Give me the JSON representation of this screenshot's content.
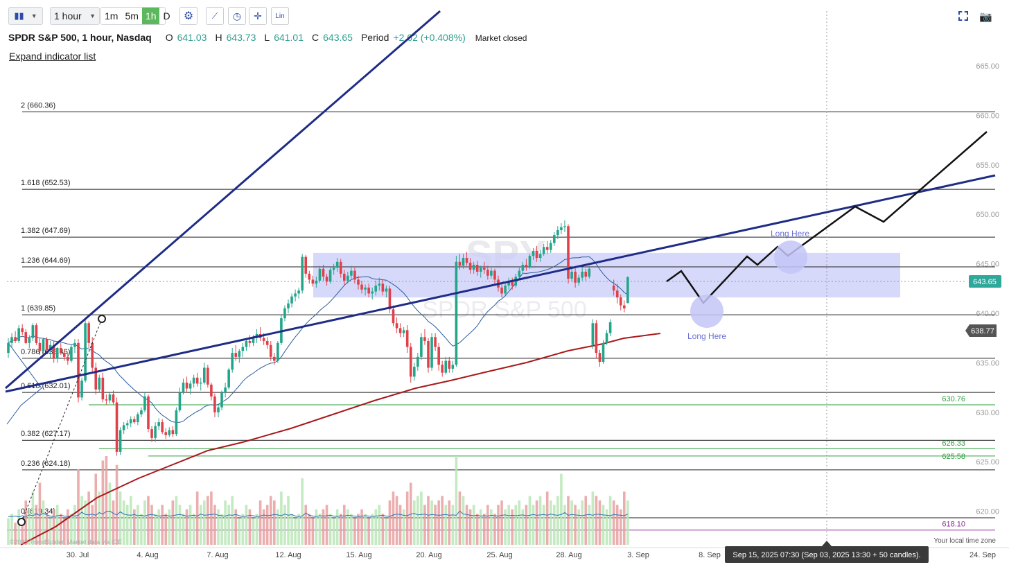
{
  "toolbar": {
    "interval_select": "1 hour",
    "intervals": [
      "1m",
      "5m",
      "1h",
      "D"
    ],
    "active_interval": "1h",
    "scale_label": "Lin"
  },
  "header": {
    "symbol": "SPDR S&P 500, 1 hour, Nasdaq",
    "open_label": "O",
    "open": "641.03",
    "high_label": "H",
    "high": "643.73",
    "low_label": "L",
    "low": "641.01",
    "close_label": "C",
    "close": "643.65",
    "period_label": "Period",
    "period": "+2.62 (+0.408%)",
    "status": "Market closed"
  },
  "expand_label": "Expand indicator list",
  "watermark": {
    "ticker": "SPY",
    "name": "SPDR S&P 500"
  },
  "footer": {
    "copyright": "©2025 TrendSpider. Market data via ICE",
    "local_time": "Your local time zone"
  },
  "tooltip": "Sep 15, 2025 07:30 (Sep 03, 2025 13:30 + 50 candles).",
  "chart_data": {
    "type": "candlestick",
    "interval": "1 hour",
    "y_axis": {
      "ticks": [
        "665.00",
        "660.00",
        "655.00",
        "650.00",
        "645.00",
        "640.00",
        "635.00",
        "630.00",
        "625.00",
        "620.00"
      ],
      "range": [
        617.5,
        667.5
      ]
    },
    "x_axis": {
      "ticks": [
        "30. Jul",
        "4. Aug",
        "7. Aug",
        "12. Aug",
        "15. Aug",
        "20. Aug",
        "25. Aug",
        "28. Aug",
        "3. Sep",
        "8. Sep",
        "24. Sep"
      ]
    },
    "last_price": "643.65",
    "price_tags": [
      {
        "label": "643.65",
        "color": "#2ea89a"
      },
      {
        "label": "638.77",
        "color": "#555555"
      }
    ],
    "fibonacci": [
      {
        "label": "2 (660.36)",
        "value": 660.36
      },
      {
        "label": "1.618 (652.53)",
        "value": 652.53
      },
      {
        "label": "1.382 (647.69)",
        "value": 647.69
      },
      {
        "label": "1.236 (644.69)",
        "value": 644.69
      },
      {
        "label": "1 (639.85)",
        "value": 639.85
      },
      {
        "label": "0.786 (635.46)",
        "value": 635.46
      },
      {
        "label": "0.618 (632.01)",
        "value": 632.01
      },
      {
        "label": "0.382 (627.17)",
        "value": 627.17
      },
      {
        "label": "0.236 (624.18)",
        "value": 624.18
      },
      {
        "label": "0 (619.34)",
        "value": 619.34
      }
    ],
    "horizontal_levels": [
      {
        "label": "630.76",
        "value": 630.76,
        "color": "#2e9e3e"
      },
      {
        "label": "626.33",
        "value": 626.33,
        "color": "#2e9e3e"
      },
      {
        "label": "625.58",
        "value": 625.58,
        "color": "#2e9e3e"
      },
      {
        "label": "618.10",
        "value": 618.1,
        "color": "#8a2a9a"
      }
    ],
    "zone": {
      "from": 641.6,
      "to": 646.1,
      "color": "#c9ccf8"
    },
    "annotations": [
      "Long Here",
      "Long Here"
    ],
    "candles": [
      [
        636.0,
        637.5,
        635.5,
        637.0
      ],
      [
        637.0,
        638.0,
        636.5,
        637.6
      ],
      [
        637.6,
        638.2,
        637.0,
        637.2
      ],
      [
        637.2,
        638.8,
        637.0,
        638.5
      ],
      [
        638.5,
        638.9,
        637.8,
        638.1
      ],
      [
        638.1,
        638.4,
        636.9,
        637.0
      ],
      [
        637.0,
        637.8,
        636.5,
        637.5
      ],
      [
        637.5,
        639.0,
        637.2,
        638.8
      ],
      [
        638.8,
        639.0,
        636.8,
        637.0
      ],
      [
        637.0,
        637.5,
        635.8,
        636.2
      ],
      [
        636.2,
        637.5,
        636.0,
        637.4
      ],
      [
        637.4,
        637.6,
        636.0,
        636.3
      ],
      [
        636.3,
        637.2,
        635.5,
        636.8
      ],
      [
        636.8,
        637.2,
        635.0,
        635.4
      ],
      [
        635.4,
        636.6,
        635.0,
        636.5
      ],
      [
        636.5,
        637.0,
        635.8,
        636.0
      ],
      [
        636.0,
        636.4,
        635.2,
        635.6
      ],
      [
        635.6,
        636.0,
        634.8,
        635.2
      ],
      [
        635.2,
        636.8,
        635.0,
        636.6
      ],
      [
        636.6,
        637.4,
        636.0,
        637.0
      ],
      [
        637.0,
        637.4,
        631.0,
        631.5
      ],
      [
        631.5,
        633.5,
        631.2,
        633.2
      ],
      [
        633.2,
        639.5,
        633.0,
        639.0
      ],
      [
        639.0,
        639.2,
        636.5,
        637.0
      ],
      [
        637.0,
        637.6,
        634.0,
        634.5
      ],
      [
        634.5,
        635.0,
        631.8,
        632.3
      ],
      [
        632.3,
        633.8,
        632.0,
        633.5
      ],
      [
        633.5,
        634.0,
        631.0,
        631.3
      ],
      [
        631.3,
        631.8,
        630.8,
        631.2
      ],
      [
        631.2,
        632.0,
        630.9,
        631.8
      ],
      [
        631.8,
        632.2,
        630.8,
        631.0
      ],
      [
        631.0,
        631.5,
        625.6,
        626.0
      ],
      [
        626.0,
        628.5,
        625.7,
        628.2
      ],
      [
        628.2,
        629.0,
        627.8,
        628.7
      ],
      [
        628.7,
        629.2,
        628.3,
        628.9
      ],
      [
        628.9,
        629.6,
        628.5,
        629.3
      ],
      [
        629.3,
        629.6,
        628.8,
        629.0
      ],
      [
        629.0,
        630.0,
        628.7,
        629.8
      ],
      [
        629.8,
        630.5,
        629.5,
        630.2
      ],
      [
        630.2,
        632.0,
        630.0,
        631.6
      ],
      [
        631.6,
        631.8,
        628.0,
        628.3
      ],
      [
        628.3,
        628.6,
        627.0,
        627.4
      ],
      [
        627.4,
        629.0,
        627.0,
        628.6
      ],
      [
        628.6,
        629.4,
        628.2,
        629.0
      ],
      [
        629.0,
        629.3,
        627.8,
        628.0
      ],
      [
        628.0,
        628.4,
        627.3,
        627.7
      ],
      [
        627.7,
        628.5,
        627.5,
        628.2
      ],
      [
        628.2,
        628.6,
        627.5,
        627.8
      ],
      [
        627.8,
        630.5,
        627.6,
        630.2
      ],
      [
        630.2,
        632.5,
        630.0,
        632.0
      ],
      [
        632.0,
        633.4,
        631.8,
        633.0
      ],
      [
        633.0,
        633.6,
        632.0,
        632.4
      ],
      [
        632.4,
        633.2,
        631.8,
        632.9
      ],
      [
        632.9,
        633.8,
        632.5,
        633.5
      ],
      [
        633.5,
        634.0,
        632.6,
        632.9
      ],
      [
        632.9,
        633.5,
        632.2,
        633.0
      ],
      [
        633.0,
        635.0,
        632.8,
        634.5
      ],
      [
        634.5,
        634.8,
        632.5,
        632.8
      ],
      [
        632.8,
        633.0,
        631.2,
        631.6
      ],
      [
        631.6,
        631.9,
        629.5,
        630.0
      ],
      [
        630.0,
        630.8,
        629.5,
        630.5
      ],
      [
        630.5,
        632.2,
        630.2,
        632.0
      ],
      [
        632.0,
        633.0,
        631.5,
        632.5
      ],
      [
        632.5,
        634.5,
        632.3,
        634.3
      ],
      [
        634.3,
        636.5,
        634.0,
        636.0
      ],
      [
        636.0,
        636.8,
        635.2,
        635.6
      ],
      [
        635.6,
        636.4,
        635.0,
        636.2
      ],
      [
        636.2,
        637.0,
        635.6,
        636.6
      ],
      [
        636.6,
        637.5,
        636.2,
        637.2
      ],
      [
        637.2,
        637.8,
        636.6,
        637.0
      ],
      [
        637.0,
        637.8,
        636.7,
        637.5
      ],
      [
        637.5,
        638.4,
        637.0,
        637.9
      ],
      [
        637.9,
        638.6,
        637.2,
        637.5
      ],
      [
        637.5,
        638.0,
        636.8,
        637.2
      ],
      [
        637.2,
        637.6,
        636.4,
        636.8
      ],
      [
        636.8,
        637.2,
        635.2,
        635.6
      ],
      [
        635.6,
        636.0,
        634.8,
        635.2
      ],
      [
        635.2,
        637.2,
        635.0,
        637.0
      ],
      [
        637.0,
        639.8,
        636.8,
        639.5
      ],
      [
        639.5,
        640.8,
        639.2,
        640.5
      ],
      [
        640.5,
        641.4,
        640.0,
        641.0
      ],
      [
        641.0,
        642.0,
        640.6,
        641.7
      ],
      [
        641.7,
        642.4,
        641.2,
        642.0
      ],
      [
        642.0,
        642.6,
        641.5,
        642.3
      ],
      [
        642.3,
        646.0,
        642.0,
        645.7
      ],
      [
        645.7,
        645.9,
        643.6,
        644.0
      ],
      [
        644.0,
        644.3,
        643.0,
        643.4
      ],
      [
        643.4,
        643.8,
        642.7,
        643.0
      ],
      [
        643.0,
        643.7,
        642.6,
        643.3
      ],
      [
        643.3,
        644.8,
        643.1,
        644.5
      ],
      [
        644.5,
        644.9,
        643.3,
        643.7
      ],
      [
        643.7,
        644.0,
        642.8,
        643.2
      ],
      [
        643.2,
        644.7,
        643.0,
        644.4
      ],
      [
        644.4,
        645.0,
        643.9,
        644.6
      ],
      [
        644.6,
        645.6,
        644.2,
        645.2
      ],
      [
        645.2,
        645.5,
        643.6,
        644.0
      ],
      [
        644.0,
        644.4,
        642.8,
        643.3
      ],
      [
        643.3,
        644.2,
        643.0,
        643.8
      ],
      [
        643.8,
        644.8,
        643.5,
        644.3
      ],
      [
        644.3,
        644.6,
        643.0,
        643.4
      ],
      [
        643.4,
        643.8,
        642.4,
        642.9
      ],
      [
        642.9,
        643.3,
        642.0,
        642.4
      ],
      [
        642.4,
        642.9,
        641.8,
        642.6
      ],
      [
        642.6,
        643.0,
        641.6,
        642.0
      ],
      [
        642.0,
        642.6,
        641.4,
        642.2
      ],
      [
        642.2,
        643.3,
        641.8,
        642.8
      ],
      [
        642.8,
        643.6,
        642.3,
        643.0
      ],
      [
        643.0,
        643.4,
        641.8,
        642.2
      ],
      [
        642.2,
        642.8,
        641.6,
        642.5
      ],
      [
        642.5,
        642.8,
        640.0,
        640.4
      ],
      [
        640.4,
        640.8,
        638.7,
        639.0
      ],
      [
        639.0,
        639.6,
        638.0,
        638.5
      ],
      [
        638.5,
        639.0,
        637.6,
        638.0
      ],
      [
        638.0,
        638.6,
        637.6,
        638.3
      ],
      [
        638.3,
        638.8,
        636.0,
        636.6
      ],
      [
        636.6,
        637.0,
        633.0,
        633.6
      ],
      [
        633.6,
        635.0,
        633.2,
        634.6
      ],
      [
        634.6,
        636.0,
        634.2,
        635.6
      ],
      [
        635.6,
        638.0,
        635.3,
        637.6
      ],
      [
        637.6,
        638.4,
        636.8,
        637.2
      ],
      [
        637.2,
        637.5,
        634.0,
        634.5
      ],
      [
        634.5,
        638.0,
        634.2,
        637.6
      ],
      [
        637.6,
        638.0,
        636.2,
        636.6
      ],
      [
        636.6,
        637.0,
        634.2,
        634.8
      ],
      [
        634.8,
        635.2,
        633.6,
        634.0
      ],
      [
        634.0,
        635.6,
        633.8,
        635.2
      ],
      [
        635.2,
        635.6,
        634.0,
        634.4
      ],
      [
        634.4,
        635.2,
        634.0,
        634.8
      ],
      [
        634.8,
        645.8,
        634.6,
        645.2
      ],
      [
        645.2,
        646.0,
        644.4,
        644.8
      ],
      [
        644.8,
        646.0,
        644.5,
        645.6
      ],
      [
        645.6,
        646.2,
        644.8,
        645.1
      ],
      [
        645.1,
        645.6,
        644.0,
        644.4
      ],
      [
        644.4,
        645.2,
        644.0,
        644.9
      ],
      [
        644.9,
        645.3,
        643.8,
        644.2
      ],
      [
        644.2,
        644.8,
        643.6,
        644.6
      ],
      [
        644.6,
        645.2,
        644.0,
        644.4
      ],
      [
        644.4,
        644.8,
        643.4,
        643.8
      ],
      [
        643.8,
        644.6,
        643.5,
        644.3
      ],
      [
        644.3,
        644.5,
        643.0,
        643.4
      ],
      [
        643.4,
        643.8,
        642.2,
        642.6
      ],
      [
        642.6,
        643.0,
        641.6,
        642.0
      ],
      [
        642.0,
        643.0,
        641.8,
        642.8
      ],
      [
        642.8,
        643.6,
        642.4,
        643.3
      ],
      [
        643.3,
        643.6,
        642.4,
        642.8
      ],
      [
        642.8,
        644.0,
        642.6,
        643.7
      ],
      [
        643.7,
        644.6,
        643.4,
        644.3
      ],
      [
        644.3,
        645.2,
        644.0,
        644.9
      ],
      [
        644.9,
        645.5,
        644.3,
        644.7
      ],
      [
        644.7,
        646.0,
        644.5,
        645.8
      ],
      [
        645.8,
        646.6,
        645.4,
        646.3
      ],
      [
        646.3,
        646.8,
        645.2,
        645.6
      ],
      [
        645.6,
        646.4,
        645.2,
        646.0
      ],
      [
        646.0,
        647.0,
        645.8,
        646.7
      ],
      [
        646.7,
        647.3,
        646.0,
        646.4
      ],
      [
        646.4,
        647.4,
        646.1,
        647.1
      ],
      [
        647.1,
        648.2,
        646.8,
        647.9
      ],
      [
        647.9,
        648.8,
        647.5,
        648.4
      ],
      [
        648.4,
        649.1,
        648.0,
        648.7
      ],
      [
        648.7,
        649.4,
        648.2,
        648.8
      ],
      [
        648.8,
        649.0,
        643.0,
        643.5
      ],
      [
        643.5,
        644.6,
        643.2,
        644.2
      ],
      [
        644.2,
        644.6,
        642.6,
        643.1
      ],
      [
        643.1,
        643.9,
        642.8,
        643.6
      ],
      [
        643.6,
        644.6,
        643.3,
        644.2
      ],
      [
        644.2,
        644.5,
        643.3,
        643.7
      ],
      [
        643.7,
        644.8,
        643.5,
        644.5
      ],
      [
        636.8,
        639.4,
        636.4,
        639.0
      ],
      [
        639.0,
        639.3,
        635.5,
        636.0
      ],
      [
        636.0,
        636.3,
        634.6,
        635.1
      ],
      [
        635.1,
        637.3,
        634.9,
        637.0
      ],
      [
        637.0,
        638.3,
        636.8,
        638.0
      ],
      [
        638.0,
        639.4,
        637.7,
        639.1
      ],
      [
        642.8,
        643.4,
        641.8,
        642.3
      ],
      [
        642.3,
        643.0,
        641.0,
        641.6
      ],
      [
        641.6,
        641.9,
        640.3,
        640.8
      ],
      [
        640.8,
        641.3,
        640.1,
        640.5
      ],
      [
        641.03,
        643.73,
        641.01,
        643.65
      ]
    ],
    "volume_relative": [
      0.3,
      0.35,
      0.25,
      0.4,
      0.3,
      0.5,
      0.4,
      0.6,
      0.45,
      0.7,
      0.5,
      0.35,
      0.3,
      0.4,
      0.45,
      0.35,
      0.3,
      0.4,
      0.35,
      0.45,
      0.85,
      0.55,
      0.5,
      0.6,
      0.45,
      0.8,
      0.6,
      0.95,
      1.0,
      0.7,
      0.5,
      0.9,
      0.6,
      0.5,
      0.45,
      0.55,
      0.4,
      0.45,
      0.35,
      0.5,
      0.55,
      0.45,
      0.35,
      0.4,
      0.45,
      0.35,
      0.4,
      0.5,
      0.55,
      0.45,
      0.35,
      0.4,
      0.45,
      0.35,
      0.6,
      0.45,
      0.5,
      0.55,
      0.6,
      0.45,
      0.4,
      0.35,
      0.5,
      0.45,
      0.55,
      0.4,
      0.3,
      0.35,
      0.45,
      0.4,
      0.3,
      0.35,
      0.5,
      0.4,
      0.45,
      0.55,
      0.5,
      0.4,
      0.6,
      0.45,
      0.55,
      0.35,
      0.3,
      0.35,
      0.75,
      0.45,
      0.35,
      0.3,
      0.4,
      0.35,
      0.4,
      0.45,
      0.35,
      0.3,
      0.4,
      0.35,
      0.45,
      0.4,
      0.35,
      0.3,
      0.35,
      0.4,
      0.35,
      0.3,
      0.35,
      0.4,
      0.45,
      0.35,
      0.3,
      0.5,
      0.6,
      0.55,
      0.45,
      0.4,
      0.6,
      0.7,
      0.5,
      0.55,
      0.6,
      0.45,
      0.55,
      0.5,
      0.45,
      0.5,
      0.55,
      0.45,
      0.5,
      0.45,
      1.0,
      0.6,
      0.55,
      0.45,
      0.4,
      0.45,
      0.35,
      0.4,
      0.35,
      0.45,
      0.4,
      0.35,
      0.45,
      0.5,
      0.4,
      0.45,
      0.4,
      0.45,
      0.5,
      0.4,
      0.45,
      0.55,
      0.45,
      0.5,
      0.55,
      0.45,
      0.6,
      0.5,
      0.45,
      0.55,
      0.8,
      0.45,
      0.55,
      0.5,
      0.45,
      0.4,
      0.5,
      0.55,
      0.45,
      0.6,
      0.55,
      0.5,
      0.45,
      0.4,
      0.55,
      0.5,
      0.45,
      0.4,
      0.6,
      0.5
    ]
  }
}
